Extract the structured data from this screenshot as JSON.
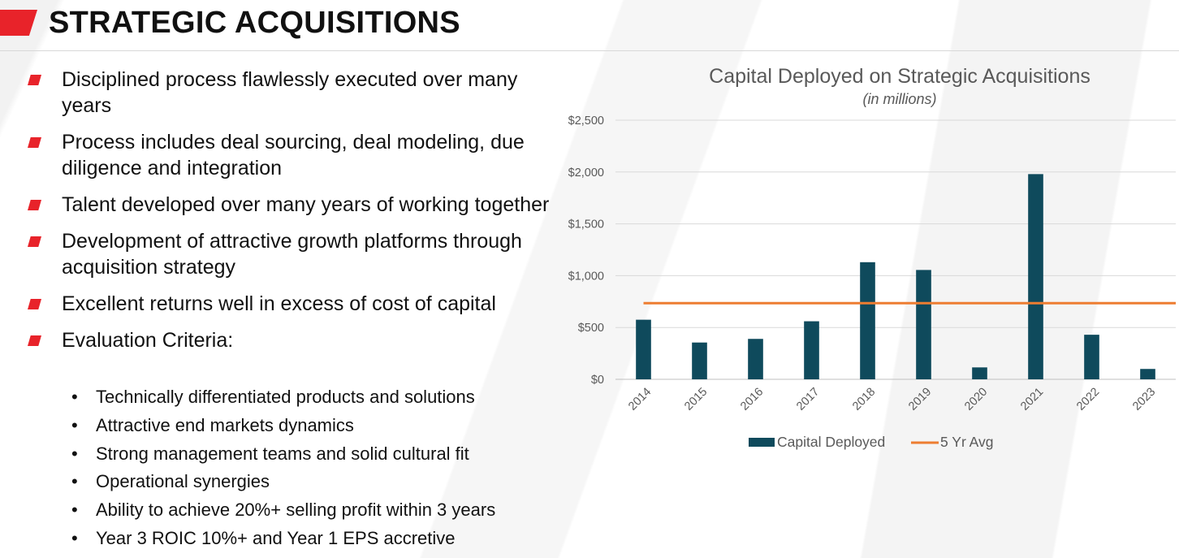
{
  "slide": {
    "title": "STRATEGIC ACQUISITIONS",
    "accent_color": "#e8232a"
  },
  "bullets": [
    "Disciplined process flawlessly executed over many years",
    "Process includes deal sourcing, deal modeling, due diligence and integration",
    "Talent developed over many years of working together",
    "Development of attractive growth platforms through acquisition strategy",
    "Excellent returns well in excess of cost of capital",
    "Evaluation Criteria:"
  ],
  "sub_bullets": [
    "Technically differentiated products and solutions",
    "Attractive end markets dynamics",
    "Strong management teams and solid cultural fit",
    "Operational synergies",
    "Ability to achieve 20%+ selling profit within 3 years",
    "Year 3 ROIC 10%+ and Year 1 EPS accretive"
  ],
  "chart_data": {
    "type": "bar",
    "title": "Capital Deployed on Strategic Acquisitions",
    "subtitle": "(in millions)",
    "categories": [
      "2014",
      "2015",
      "2016",
      "2017",
      "2018",
      "2019",
      "2020",
      "2021",
      "2022",
      "2023"
    ],
    "series": [
      {
        "name": "Capital Deployed",
        "type": "bar",
        "color": "#0f4a5c",
        "values": [
          575,
          355,
          390,
          560,
          1130,
          1055,
          115,
          1980,
          430,
          100
        ]
      },
      {
        "name": "5 Yr Avg",
        "type": "line",
        "color": "#ed7d31",
        "values": [
          735,
          735,
          735,
          735,
          735,
          735,
          735,
          735,
          735,
          735
        ]
      }
    ],
    "ylim": [
      0,
      2500
    ],
    "yticks": [
      "$0",
      "$500",
      "$1,000",
      "$1,500",
      "$2,000",
      "$2,500"
    ],
    "ytick_values": [
      0,
      500,
      1000,
      1500,
      2000,
      2500
    ],
    "grid": true,
    "legend_position": "bottom"
  }
}
